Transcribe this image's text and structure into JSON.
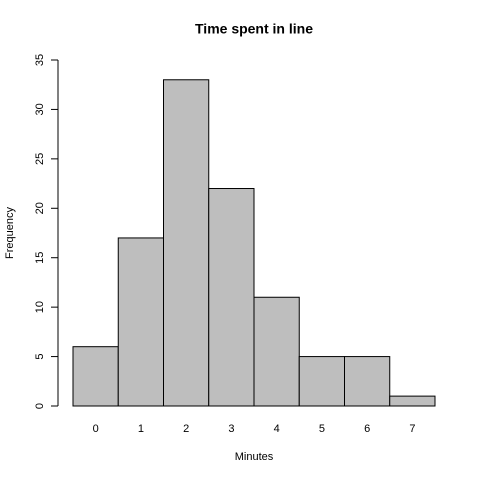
{
  "chart_data": {
    "type": "bar",
    "title": "Time spent in line",
    "x_label": "Minutes",
    "y_label": "Frequency",
    "categories": [
      "0",
      "1",
      "2",
      "3",
      "4",
      "5",
      "6",
      "7"
    ],
    "values": [
      6,
      17,
      33,
      22,
      11,
      5,
      5,
      1
    ],
    "color": "#bebebe",
    "ylim": [
      0,
      35
    ],
    "yticks": [
      0,
      5,
      10,
      15,
      20,
      25,
      30,
      35
    ],
    "grid": false
  }
}
